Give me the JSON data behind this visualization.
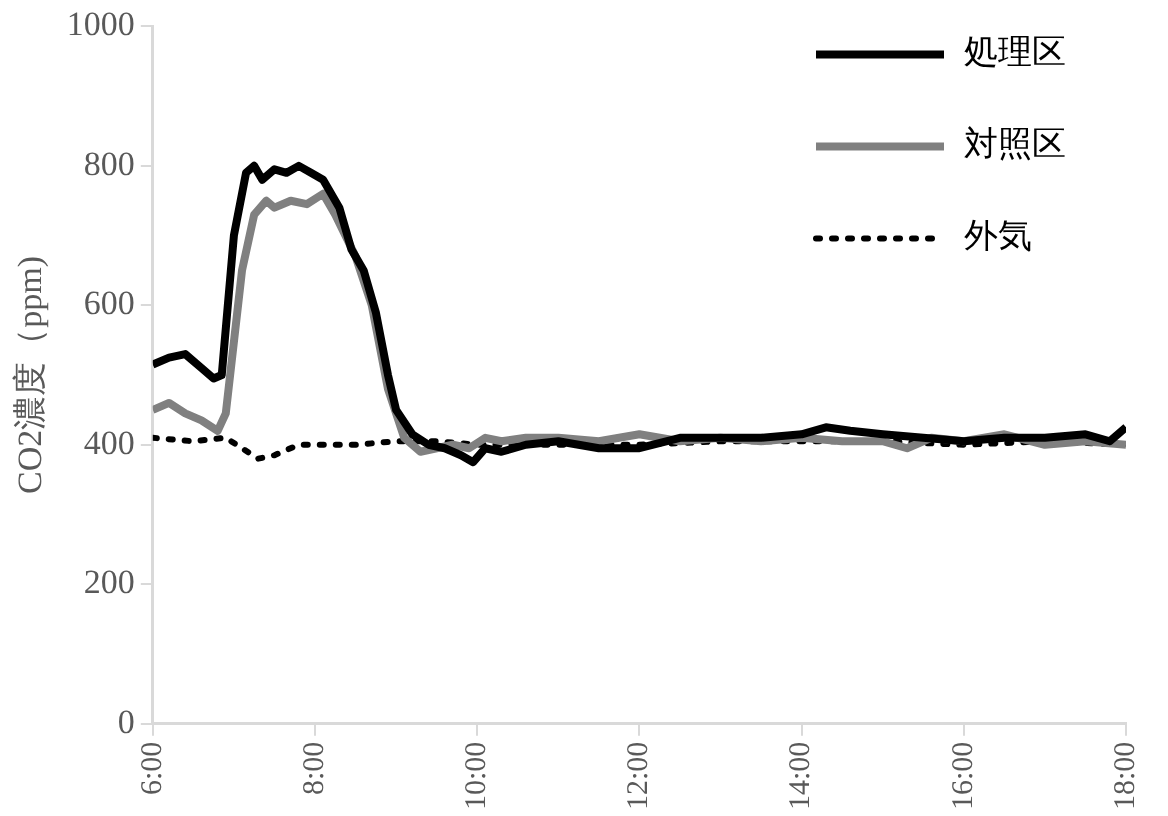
{
  "chart_data": {
    "type": "line",
    "ylabel": "CO2濃度（ppm)",
    "xlim": [
      6,
      18
    ],
    "xticks": [
      {
        "value": 6,
        "label": "6:00"
      },
      {
        "value": 8,
        "label": "8:00"
      },
      {
        "value": 10,
        "label": "10:00"
      },
      {
        "value": 12,
        "label": "12:00"
      },
      {
        "value": 14,
        "label": "14:00"
      },
      {
        "value": 16,
        "label": "16:00"
      },
      {
        "value": 18,
        "label": "18:00"
      }
    ],
    "ylim": [
      0,
      1000
    ],
    "yticks": [
      0,
      200,
      400,
      600,
      800,
      1000
    ],
    "grid": false,
    "legend": "top right",
    "marker": "none",
    "series": [
      {
        "name": "処理区",
        "color": "#000000",
        "line_style": "solid",
        "x": [
          6,
          6.2,
          6.4,
          6.6,
          6.75,
          6.85,
          7,
          7.15,
          7.25,
          7.35,
          7.5,
          7.65,
          7.8,
          7.95,
          8.1,
          8.3,
          8.45,
          8.6,
          8.75,
          8.9,
          9,
          9.2,
          9.4,
          9.6,
          9.8,
          9.95,
          10.1,
          10.3,
          10.6,
          11,
          11.5,
          12,
          12.5,
          13,
          13.5,
          14,
          14.3,
          14.6,
          15,
          15.5,
          16,
          16.5,
          17,
          17.5,
          17.8,
          18
        ],
        "values": [
          515,
          525,
          530,
          510,
          495,
          500,
          700,
          790,
          800,
          780,
          795,
          790,
          800,
          790,
          780,
          740,
          680,
          650,
          590,
          500,
          450,
          415,
          400,
          395,
          385,
          375,
          395,
          390,
          400,
          405,
          395,
          395,
          410,
          410,
          410,
          415,
          425,
          420,
          415,
          410,
          405,
          410,
          410,
          415,
          405,
          425
        ]
      },
      {
        "name": "対照区",
        "color": "#808080",
        "line_style": "solid",
        "x": [
          6,
          6.2,
          6.4,
          6.6,
          6.8,
          6.9,
          7.1,
          7.25,
          7.4,
          7.5,
          7.7,
          7.9,
          8.1,
          8.25,
          8.5,
          8.7,
          8.9,
          9.1,
          9.3,
          9.5,
          9.7,
          9.9,
          10.1,
          10.3,
          10.6,
          11,
          11.5,
          12,
          12.5,
          13,
          13.5,
          14,
          14.5,
          15,
          15.3,
          15.6,
          16,
          16.5,
          17,
          17.5,
          18
        ],
        "values": [
          450,
          460,
          445,
          435,
          420,
          445,
          650,
          730,
          750,
          740,
          750,
          745,
          760,
          730,
          670,
          600,
          480,
          410,
          390,
          395,
          400,
          395,
          410,
          405,
          410,
          410,
          405,
          415,
          405,
          410,
          405,
          410,
          405,
          405,
          395,
          410,
          405,
          415,
          400,
          405,
          400
        ]
      },
      {
        "name": "外気",
        "color": "#000000",
        "line_style": "dotted",
        "x": [
          6,
          6.5,
          6.9,
          7.1,
          7.3,
          7.5,
          7.8,
          8.5,
          9,
          9.5,
          10,
          11,
          12,
          13,
          14,
          15,
          16,
          17,
          18
        ],
        "values": [
          410,
          405,
          410,
          395,
          380,
          385,
          400,
          400,
          405,
          405,
          400,
          400,
          400,
          405,
          405,
          405,
          400,
          405,
          400
        ]
      }
    ]
  }
}
